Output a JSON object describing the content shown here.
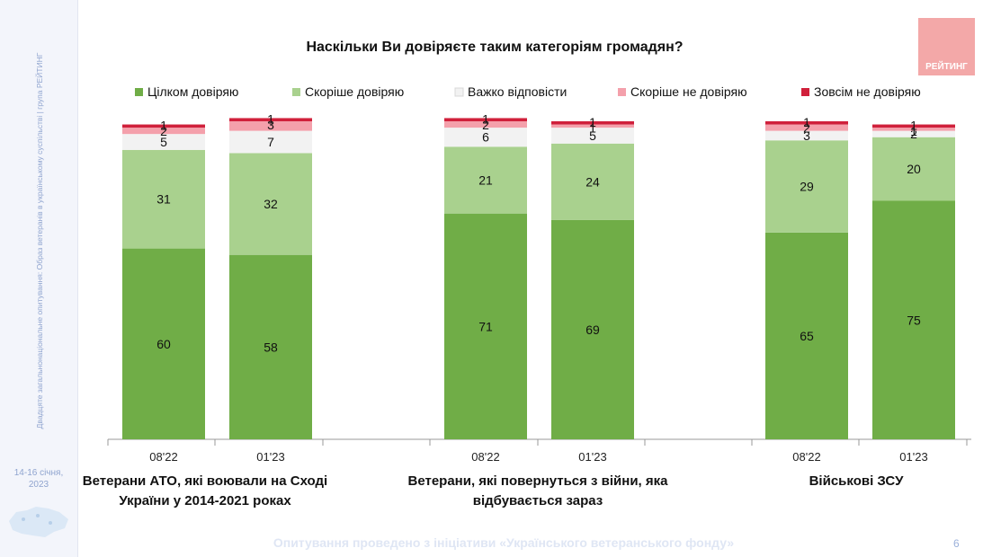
{
  "sidebar": {
    "vertical_text": "Двадцяте загальнонаціональне опитування: Образ ветеранів в українському суспільстві | група РЕЙТИНГ",
    "date_line1": "14-16 січня,",
    "date_line2": "2023"
  },
  "logo": {
    "text": "РЕЙТИНГ"
  },
  "footer": {
    "text": "Опитування проведено з ініціативи «Українського ветеранського фонду»",
    "page": "6"
  },
  "colors": {
    "full_trust": "#70ad47",
    "rather_trust": "#a9d18e",
    "hard_to_say": "#f2f2f2",
    "rather_distrust": "#f4a0ab",
    "no_trust": "#d0203b"
  },
  "chart_data": {
    "type": "bar",
    "stacked": true,
    "title": "Наскільки Ви довіряєте таким категоріям громадян?",
    "legend_position": "top",
    "ylim": [
      0,
      100
    ],
    "groups": [
      {
        "label": "Ветерани АТО, які воювали на Сході України у 2014-2021 роках",
        "label_lines": [
          "Ветерани АТО, які воювали на Сході",
          "України у 2014-2021 роках"
        ]
      },
      {
        "label": "Ветерани, які повернуться з війни, яка відбувається зараз",
        "label_lines": [
          "Ветерани, які повернуться з війни, яка",
          "відбувається зараз"
        ]
      },
      {
        "label": "Військові ЗСУ",
        "label_lines": [
          "Військові ЗСУ"
        ]
      }
    ],
    "categories": [
      "08'22",
      "01'23",
      "08'22",
      "01'23",
      "08'22",
      "01'23"
    ],
    "series": [
      {
        "name": "Цілком довіряю",
        "color": "#70ad47",
        "values": [
          60,
          58,
          71,
          69,
          65,
          75
        ]
      },
      {
        "name": "Скоріше довіряю",
        "color": "#a9d18e",
        "values": [
          31,
          32,
          21,
          24,
          29,
          20
        ]
      },
      {
        "name": "Важко відповісти",
        "color": "#f2f2f2",
        "values": [
          5,
          7,
          6,
          5,
          3,
          2
        ]
      },
      {
        "name": "Скоріше не довіряю",
        "color": "#f4a0ab",
        "values": [
          2,
          3,
          2,
          1,
          2,
          1
        ]
      },
      {
        "name": "Зовсім не довіряю",
        "color": "#d0203b",
        "values": [
          1,
          1,
          1,
          1,
          1,
          1
        ]
      }
    ]
  }
}
